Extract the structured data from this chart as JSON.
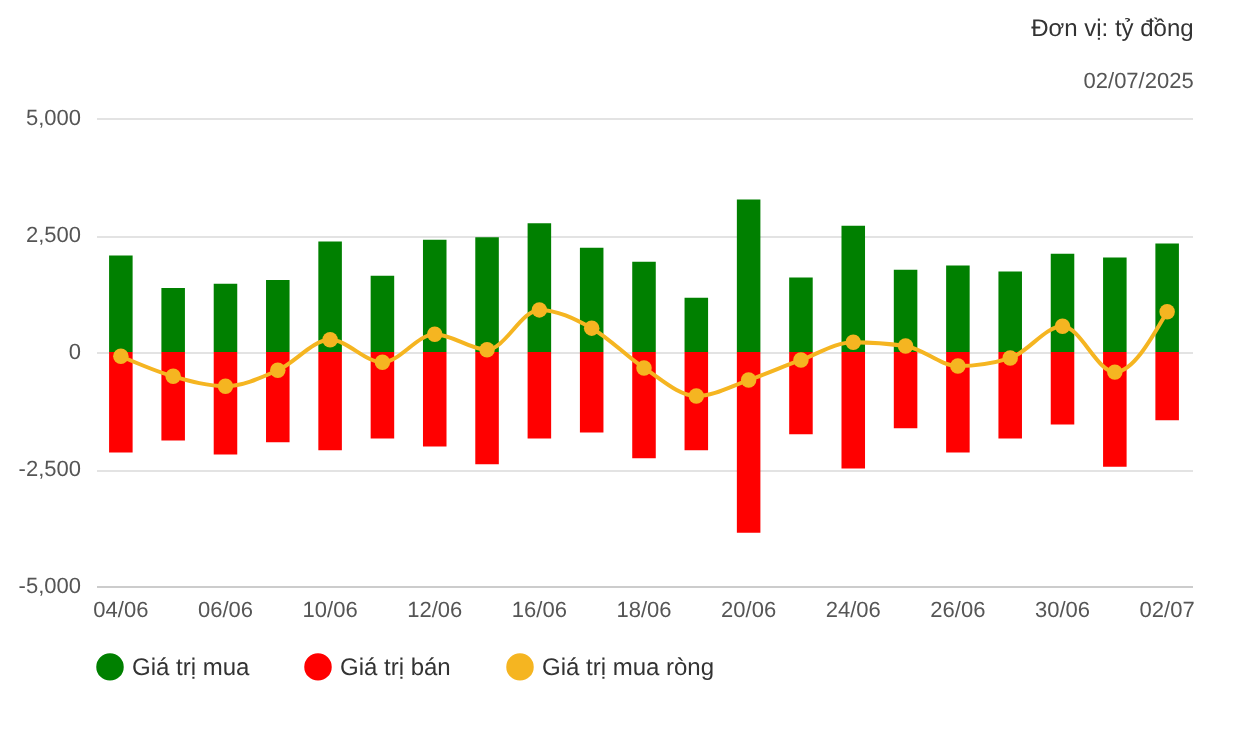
{
  "chart_data": {
    "type": "bar",
    "annotations": [
      "Đơn vị: tỷ đồng",
      "02/07/2025"
    ],
    "categories": [
      "04/06",
      null,
      "06/06",
      null,
      "10/06",
      null,
      "12/06",
      null,
      "16/06",
      null,
      "18/06",
      null,
      "20/06",
      null,
      "24/06",
      null,
      "26/06",
      null,
      "30/06",
      null,
      "02/07"
    ],
    "series": [
      {
        "name": "Giá trị mua",
        "color": "#008000",
        "values": [
          2060,
          1370,
          1460,
          1540,
          2360,
          1630,
          2400,
          2450,
          2750,
          2230,
          1930,
          1160,
          3260,
          1590,
          2700,
          1760,
          1850,
          1720,
          2100,
          2020,
          2320
        ]
      },
      {
        "name": "Giá trị bán",
        "color": "#ff0000",
        "values": [
          -2150,
          -1890,
          -2190,
          -1930,
          -2100,
          -1850,
          -2020,
          -2400,
          -1850,
          -1720,
          -2270,
          -2100,
          -3860,
          -1760,
          -2490,
          -1630,
          -2150,
          -1850,
          -1550,
          -2450,
          -1460
        ]
      },
      {
        "name": "Giá trị mua ròng",
        "type": "line",
        "color": "#f5b521",
        "values": [
          -90,
          -520,
          -730,
          -390,
          260,
          -220,
          380,
          50,
          900,
          510,
          -340,
          -940,
          -600,
          -170,
          210,
          130,
          -300,
          -130,
          550,
          -430,
          860
        ]
      }
    ],
    "ylim": [
      -5000,
      5000
    ],
    "yticks": [
      {
        "value": -5000,
        "label": "-5,000"
      },
      {
        "value": -2500,
        "label": "-2,500"
      },
      0,
      {
        "value": 2500,
        "label": "2,500"
      },
      {
        "value": 5000,
        "label": "5,000"
      }
    ],
    "stacked": true,
    "grid": "y",
    "legend": "bottom",
    "marker": "circle",
    "line_style": "solid"
  }
}
